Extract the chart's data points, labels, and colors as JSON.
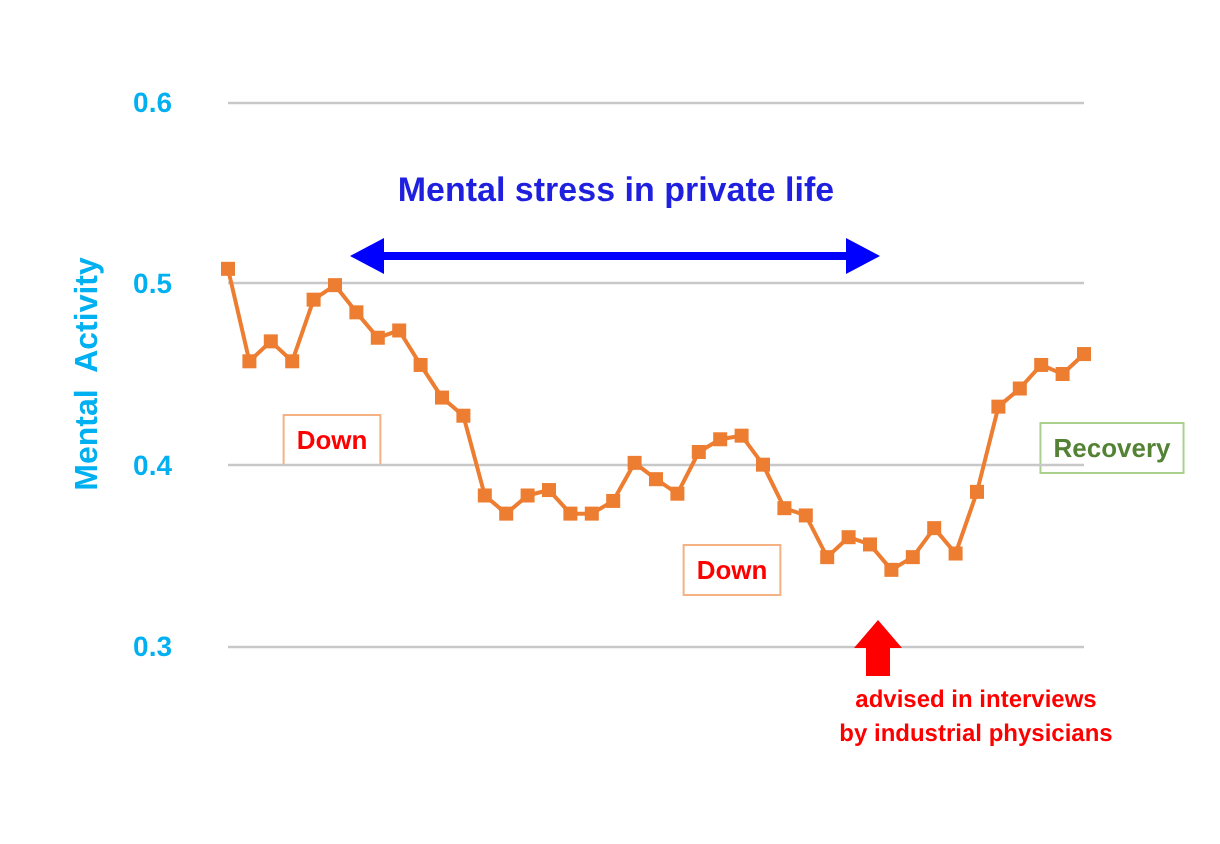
{
  "chart_data": {
    "type": "line",
    "ylabel": "Mental  Activity",
    "categories": [
      null,
      null,
      null,
      null,
      null,
      null,
      null,
      null,
      null,
      null,
      null,
      null,
      null,
      null,
      null,
      null,
      null,
      null,
      null,
      null,
      null,
      null,
      null,
      null,
      null,
      null,
      null,
      null,
      null,
      null,
      null,
      null,
      null,
      null,
      null,
      null,
      null,
      null,
      null,
      null,
      null
    ],
    "series": [
      {
        "color": "#ed7d31",
        "values": [
          0.508,
          0.457,
          0.468,
          0.457,
          0.491,
          0.499,
          0.484,
          0.47,
          0.474,
          0.455,
          0.437,
          0.427,
          0.383,
          0.373,
          0.383,
          0.386,
          0.373,
          0.373,
          0.38,
          0.401,
          0.392,
          0.384,
          0.407,
          0.414,
          0.416,
          0.4,
          0.376,
          0.372,
          0.349,
          0.36,
          0.356,
          0.342,
          0.349,
          0.365,
          0.351,
          0.385,
          0.432,
          0.442,
          0.455,
          0.45,
          0.461
        ]
      }
    ],
    "ylim": [
      0.3,
      0.6
    ],
    "yticks": [
      0.3,
      0.4,
      0.5,
      0.6
    ],
    "grid": "y",
    "marker": "square",
    "line_style": "solid",
    "tick_labels": "y",
    "annotations": [
      "Mental stress in private life",
      "Down",
      "Down",
      "Recovery",
      "advised in interviews\nby industrial physicians"
    ]
  }
}
